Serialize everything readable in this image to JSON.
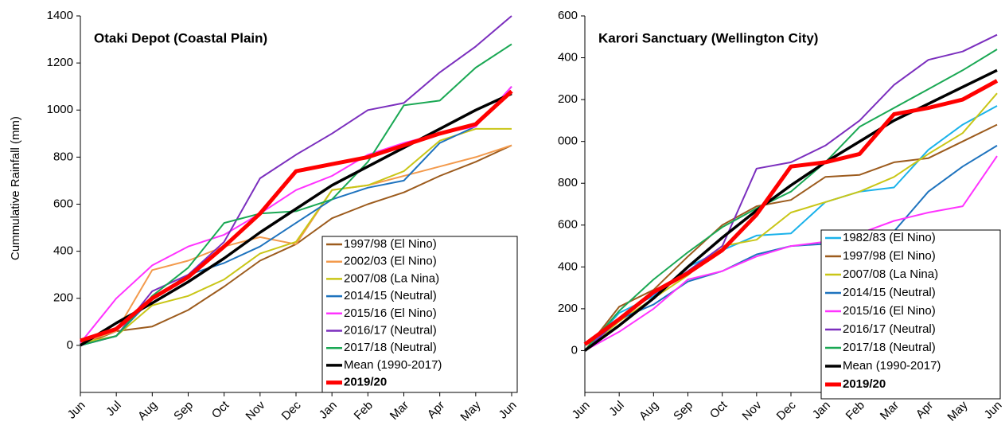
{
  "chart_data": [
    {
      "type": "line",
      "title": "Otaki Depot (Coastal Plain)",
      "ylabel": "Cummulative Rainfall (mm)",
      "categories": [
        "Jun",
        "Jul",
        "Aug",
        "Sep",
        "Oct",
        "Nov",
        "Dec",
        "Jan",
        "Feb",
        "Mar",
        "Apr",
        "May",
        "Jun"
      ],
      "ylim": [
        -200,
        1400
      ],
      "yticks": [
        0,
        200,
        400,
        600,
        800,
        1000,
        1200,
        1400
      ],
      "series": [
        {
          "name": "1997/98 (El Nino)",
          "color": "#9c5b1d",
          "values": [
            0,
            60,
            80,
            150,
            250,
            360,
            430,
            540,
            600,
            650,
            720,
            780,
            850
          ]
        },
        {
          "name": "2002/03 (El Nino)",
          "color": "#f39a4c",
          "values": [
            10,
            60,
            320,
            360,
            420,
            460,
            430,
            660,
            680,
            720,
            760,
            800,
            850
          ]
        },
        {
          "name": "2007/08 (La Nina)",
          "color": "#c9c617",
          "values": [
            10,
            40,
            170,
            210,
            280,
            390,
            440,
            660,
            680,
            740,
            870,
            920,
            920
          ]
        },
        {
          "name": "2014/15 (Neutral)",
          "color": "#1e73be",
          "values": [
            0,
            40,
            200,
            300,
            350,
            420,
            520,
            620,
            670,
            700,
            860,
            930,
            1100
          ]
        },
        {
          "name": "2015/16 (El Nino)",
          "color": "#ff33ff",
          "values": [
            10,
            200,
            340,
            420,
            470,
            560,
            660,
            720,
            810,
            860,
            900,
            930,
            1100
          ]
        },
        {
          "name": "2016/17 (Neutral)",
          "color": "#7b2fbe",
          "values": [
            0,
            40,
            230,
            300,
            440,
            710,
            810,
            900,
            1000,
            1030,
            1160,
            1270,
            1400
          ]
        },
        {
          "name": "2017/18 (Neutral)",
          "color": "#1aa854",
          "values": [
            0,
            40,
            210,
            330,
            520,
            560,
            570,
            620,
            780,
            1020,
            1040,
            1180,
            1280
          ]
        },
        {
          "name": "Mean (1990-2017)",
          "color": "#000000",
          "values": [
            0,
            95,
            180,
            270,
            370,
            480,
            580,
            680,
            760,
            840,
            920,
            1000,
            1070
          ]
        },
        {
          "name": "2019/20",
          "color": "#ff0000",
          "values": [
            20,
            70,
            200,
            290,
            420,
            560,
            740,
            770,
            800,
            850,
            900,
            940,
            1080
          ]
        }
      ]
    },
    {
      "type": "line",
      "title": "Karori Sanctuary (Wellington City)",
      "categories": [
        "Jun",
        "Jul",
        "Aug",
        "Sep",
        "Oct",
        "Nov",
        "Dec",
        "Jan",
        "Feb",
        "Mar",
        "Apr",
        "May",
        "Jun"
      ],
      "ylim": [
        -200,
        1600
      ],
      "yticks": [
        0,
        200,
        400,
        600,
        800,
        {
          "value": 1000,
          "label": "000"
        },
        {
          "value": 1200,
          "label": "200"
        },
        {
          "value": 1400,
          "label": "400"
        },
        {
          "value": 1600,
          "label": "600"
        }
      ],
      "series": [
        {
          "name": "1982/83 (El Nino)",
          "color": "#1ab2ea",
          "values": [
            0,
            180,
            260,
            400,
            480,
            550,
            560,
            710,
            760,
            780,
            960,
            1080,
            1170
          ]
        },
        {
          "name": "1997/98 (El Nino)",
          "color": "#9c5b1d",
          "values": [
            0,
            210,
            290,
            450,
            600,
            690,
            720,
            830,
            840,
            900,
            920,
            1000,
            1080
          ]
        },
        {
          "name": "2007/08 (La Nina)",
          "color": "#c9c617",
          "values": [
            0,
            140,
            250,
            360,
            500,
            530,
            660,
            710,
            760,
            830,
            940,
            1040,
            1230
          ]
        },
        {
          "name": "2014/15 (Neutral)",
          "color": "#1e73be",
          "values": [
            0,
            150,
            220,
            330,
            380,
            460,
            500,
            510,
            550,
            570,
            760,
            880,
            980
          ]
        },
        {
          "name": "2015/16 (El Nino)",
          "color": "#ff33ff",
          "values": [
            0,
            90,
            200,
            340,
            380,
            450,
            500,
            520,
            560,
            620,
            660,
            690,
            930
          ]
        },
        {
          "name": "2016/17 (Neutral)",
          "color": "#7b2fbe",
          "values": [
            0,
            150,
            270,
            380,
            500,
            870,
            900,
            980,
            1100,
            1270,
            1390,
            1430,
            1510
          ]
        },
        {
          "name": "2017/18 (Neutral)",
          "color": "#1aa854",
          "values": [
            0,
            190,
            340,
            470,
            590,
            680,
            760,
            900,
            1070,
            1160,
            1250,
            1340,
            1440
          ]
        },
        {
          "name": "Mean (1990-2017)",
          "color": "#000000",
          "values": [
            0,
            120,
            250,
            400,
            540,
            670,
            790,
            900,
            1000,
            1100,
            1180,
            1260,
            1340
          ]
        },
        {
          "name": "2019/20",
          "color": "#ff0000",
          "values": [
            30,
            150,
            280,
            370,
            480,
            650,
            880,
            900,
            940,
            1130,
            1160,
            1200,
            1290
          ]
        }
      ]
    }
  ]
}
